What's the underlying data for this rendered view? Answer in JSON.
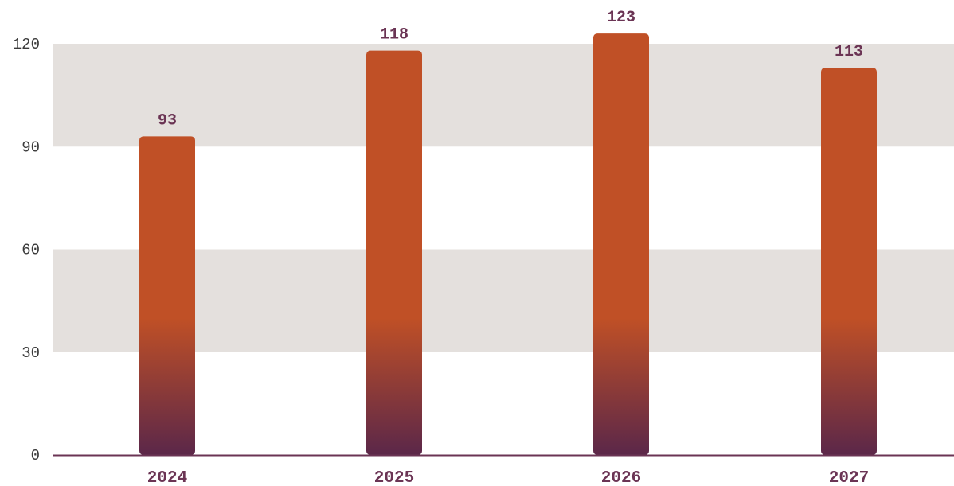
{
  "colors": {
    "bar_top": "#c05026",
    "bar_bottom": "#5b2749",
    "band": "#e4e0dd",
    "axis_line": "#6b3454",
    "value_text": "#6b3454"
  },
  "chart_data": {
    "type": "bar",
    "title": "",
    "xlabel": "",
    "ylabel": "",
    "categories": [
      "2024",
      "2025",
      "2026",
      "2027"
    ],
    "values": [
      93,
      118,
      123,
      113
    ],
    "value_labels": [
      "93",
      "118",
      "123",
      "113"
    ],
    "ylim": [
      0,
      120
    ],
    "yticks": [
      0,
      30,
      60,
      90,
      120
    ],
    "ytick_labels": [
      "0",
      "30",
      "60",
      "90",
      "120"
    ],
    "grid": "alternating horizontal bands",
    "legend": "none"
  }
}
